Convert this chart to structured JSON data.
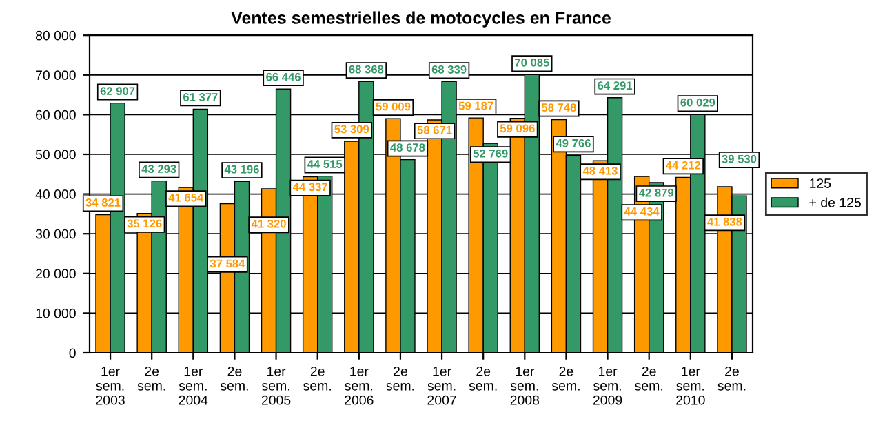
{
  "chart_data": {
    "type": "bar",
    "title": "Ventes semestrielles de motocycles en France",
    "categories": [
      "1er\nsem.\n2003",
      "2e\nsem.",
      "1er\nsem.\n2004",
      "2e\nsem.",
      "1er\nsem.\n2005",
      "2e\nsem.",
      "1er\nsem.\n2006",
      "2e\nsem.",
      "1er\nsem.\n2007",
      "2e\nsem.",
      "1er\nsem.\n2008",
      "2e\nsem.",
      "1er\nsem.\n2009",
      "2e\nsem.",
      "1er\nsem.\n2010",
      "2e\nsem."
    ],
    "series": [
      {
        "name": "125",
        "color": "#ff9900",
        "values": [
          34821,
          35126,
          41654,
          37584,
          41320,
          44337,
          53309,
          59009,
          58671,
          59187,
          59096,
          58748,
          48413,
          44434,
          44212,
          41838
        ],
        "value_labels": [
          "34 821",
          "35 126",
          "41 654",
          "37 584",
          "41 320",
          "44 337",
          "53 309",
          "59 009",
          "58 671",
          "59 187",
          "59 096",
          "58 748",
          "48 413",
          "44 434",
          "44 212",
          "41 838"
        ]
      },
      {
        "name": "+ de 125",
        "color": "#339966",
        "values": [
          62907,
          43293,
          61377,
          43196,
          66446,
          44515,
          68368,
          48678,
          68339,
          52769,
          70085,
          49766,
          64291,
          42879,
          60029,
          39530
        ],
        "value_labels": [
          "62 907",
          "43 293",
          "61 377",
          "43 196",
          "66 446",
          "44 515",
          "68 368",
          "48 678",
          "68 339",
          "52 769",
          "70 085",
          "49 766",
          "64 291",
          "42 879",
          "60 029",
          "39 530"
        ]
      }
    ],
    "ylim": [
      0,
      80000
    ],
    "yticks": [
      0,
      {
        "value": 10000,
        "label": "10 000"
      },
      {
        "value": 20000,
        "label": "20 000"
      },
      {
        "value": 30000,
        "label": "30 000"
      },
      {
        "value": 40000,
        "label": "40 000"
      },
      {
        "value": 50000,
        "label": "50 000"
      },
      {
        "value": 60000,
        "label": "60 000"
      },
      {
        "value": 70000,
        "label": "70 000"
      },
      {
        "value": 80000,
        "label": "80 000"
      }
    ],
    "grid": "y",
    "legend": "right"
  }
}
